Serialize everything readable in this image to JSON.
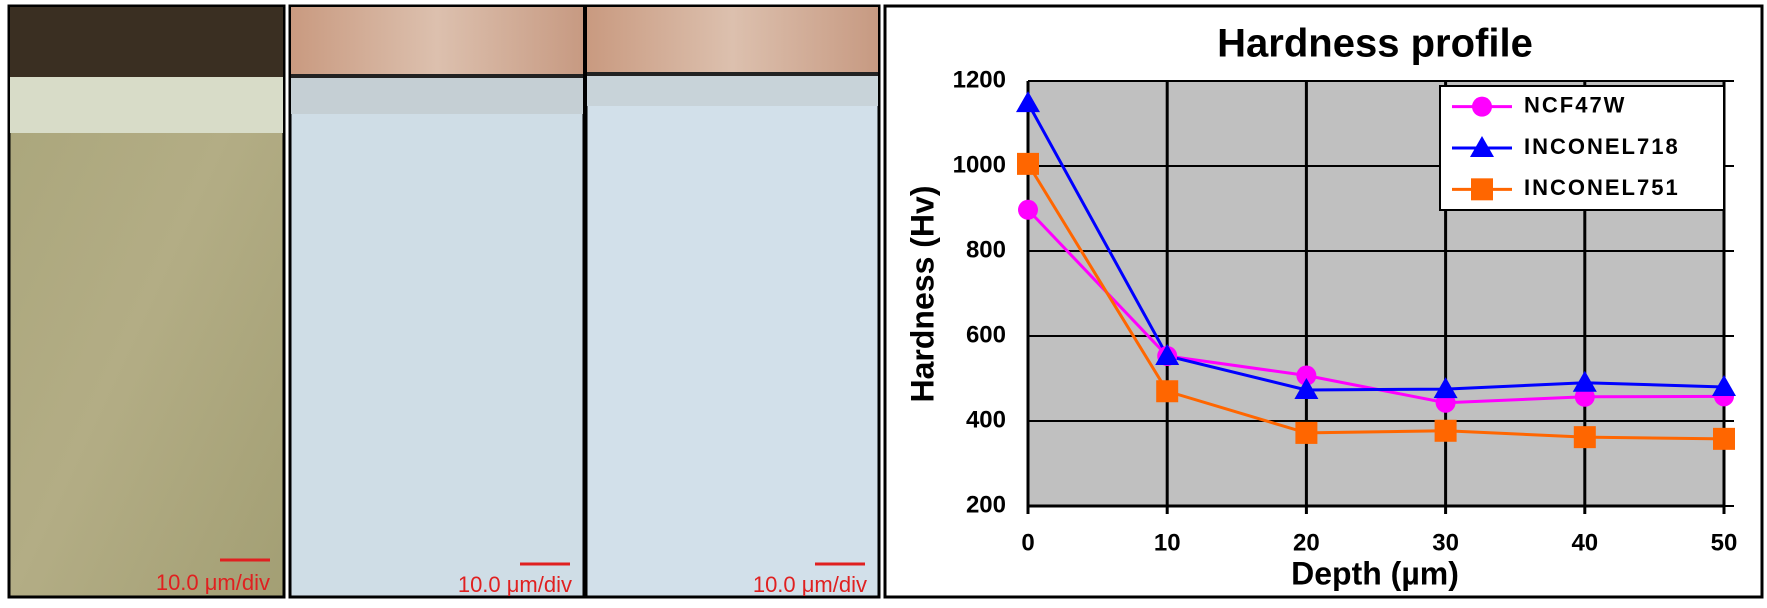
{
  "panels": [
    {
      "scale_label": "10.0 μm/div"
    },
    {
      "scale_label": "10.0 μm/div"
    },
    {
      "scale_label": "10.0 μm/div"
    }
  ],
  "chart_data": {
    "type": "line",
    "title": "Hardness profile",
    "x_label": "Depth (µm)",
    "y_label": "Hardness (Hv)",
    "x": [
      0,
      10,
      20,
      30,
      40,
      50
    ],
    "series": [
      {
        "name": "NCF47W",
        "color": "#ff00ff",
        "marker": "circle",
        "values": [
          897,
          553,
          507,
          443,
          457,
          458
        ]
      },
      {
        "name": "INCONEL718",
        "color": "#0000ff",
        "marker": "triangle",
        "values": [
          1148,
          553,
          473,
          475,
          490,
          480
        ]
      },
      {
        "name": "INCONEL751",
        "color": "#ff6600",
        "marker": "square",
        "values": [
          1005,
          470,
          372,
          377,
          362,
          358
        ]
      }
    ],
    "xlim": [
      0,
      50
    ],
    "xticks": [
      0,
      10,
      20,
      30,
      40,
      50
    ],
    "ylim": [
      200,
      1200
    ],
    "yticks": [
      200,
      400,
      600,
      800,
      1000,
      1200
    ],
    "grid": true,
    "legend": "upper right",
    "plot_background": "#c0c0c0"
  }
}
